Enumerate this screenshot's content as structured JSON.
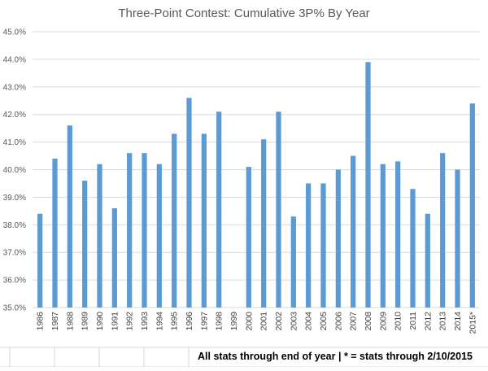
{
  "chart_data": {
    "type": "bar",
    "title": "Three-Point Contest: Cumulative 3P% By Year",
    "xlabel": "",
    "ylabel": "",
    "ylim": [
      35.0,
      45.0
    ],
    "ytick_step": 1.0,
    "ytick_format": "percent_1dp",
    "grid": true,
    "legend": "none",
    "bar_color": "#5b9bd5",
    "categories": [
      "1986",
      "1987",
      "1988",
      "1989",
      "1990",
      "1991",
      "1992",
      "1993",
      "1994",
      "1995",
      "1996",
      "1997",
      "1998",
      "1999",
      "2000",
      "2001",
      "2002",
      "2003",
      "2004",
      "2005",
      "2006",
      "2007",
      "2008",
      "2009",
      "2010",
      "2011",
      "2012",
      "2013",
      "2014",
      "2015*"
    ],
    "values": [
      38.4,
      40.4,
      41.6,
      39.6,
      40.2,
      38.6,
      40.6,
      40.6,
      40.2,
      41.3,
      42.6,
      41.3,
      42.1,
      null,
      40.1,
      41.1,
      42.1,
      38.3,
      39.5,
      39.5,
      40.0,
      40.5,
      43.9,
      40.2,
      40.3,
      39.3,
      38.4,
      40.6,
      40.0,
      42.4
    ]
  },
  "footnote": "All stats through end of year | * = stats through 2/10/2015"
}
